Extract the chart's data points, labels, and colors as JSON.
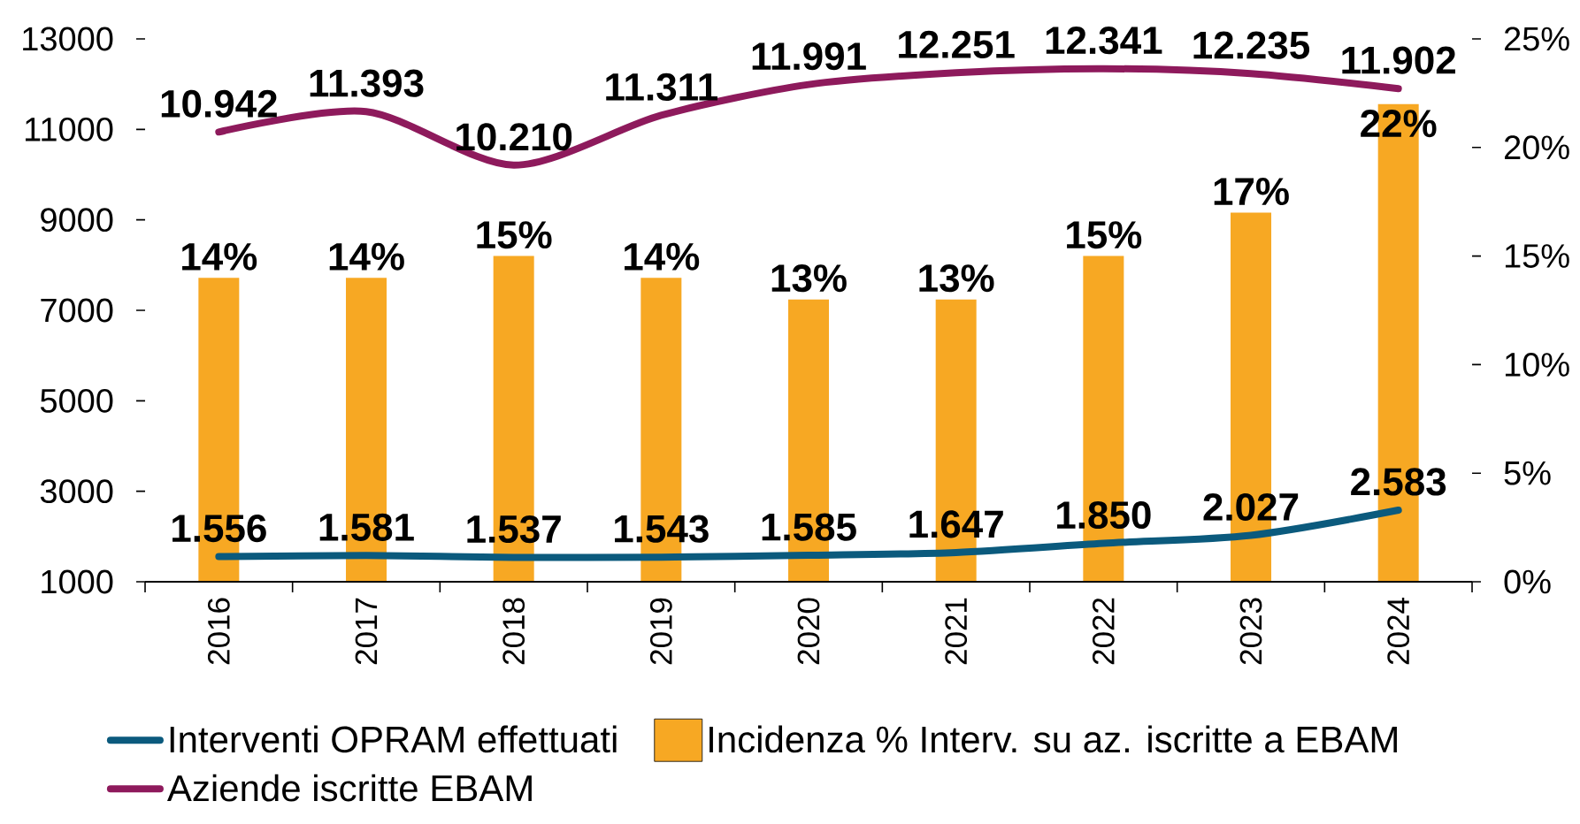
{
  "chart_data": {
    "type": "bar",
    "categories": [
      "2016",
      "2017",
      "2018",
      "2019",
      "2020",
      "2021",
      "2022",
      "2023",
      "2024"
    ],
    "series": [
      {
        "name": "Interventi OPRAM effettuati",
        "type": "line",
        "color": "#0b5a7d",
        "values": [
          1556,
          1581,
          1537,
          1543,
          1585,
          1647,
          1850,
          2027,
          2583
        ],
        "value_labels": [
          "1.556",
          "1.581",
          "1.537",
          "1.543",
          "1.585",
          "1.647",
          "1.850",
          "2.027",
          "2.583"
        ]
      },
      {
        "name": "Incidenza % Interv. su az. iscritte a EBAM",
        "axis": "y2",
        "color": "#f7a823",
        "values": [
          14,
          14,
          15,
          14,
          13,
          13,
          15,
          17,
          22
        ],
        "value_labels": [
          "14%",
          "14%",
          "15%",
          "14%",
          "13%",
          "13%",
          "15%",
          "17%",
          "22%"
        ]
      },
      {
        "name": "Aziende iscritte EBAM",
        "type": "line",
        "color": "#8e1a5c",
        "values": [
          10942,
          11393,
          10210,
          11311,
          11991,
          12251,
          12341,
          12235,
          11902
        ],
        "value_labels": [
          "10.942",
          "11.393",
          "10.210",
          "11.311",
          "11.991",
          "12.251",
          "12.341",
          "12.235",
          "11.902"
        ]
      }
    ],
    "ylim": [
      1000,
      13000
    ],
    "yticks": [
      1000,
      3000,
      5000,
      7000,
      9000,
      11000,
      13000
    ],
    "y2lim": [
      0,
      25
    ],
    "y2ticks": [
      {
        "value": 0,
        "label": "0%"
      },
      {
        "value": 5,
        "label": "5%"
      },
      {
        "value": 10,
        "label": "10%"
      },
      {
        "value": 15,
        "label": "15%"
      },
      {
        "value": 20,
        "label": "20%"
      },
      {
        "value": 25,
        "label": "25%"
      }
    ],
    "legend": "bottom"
  }
}
